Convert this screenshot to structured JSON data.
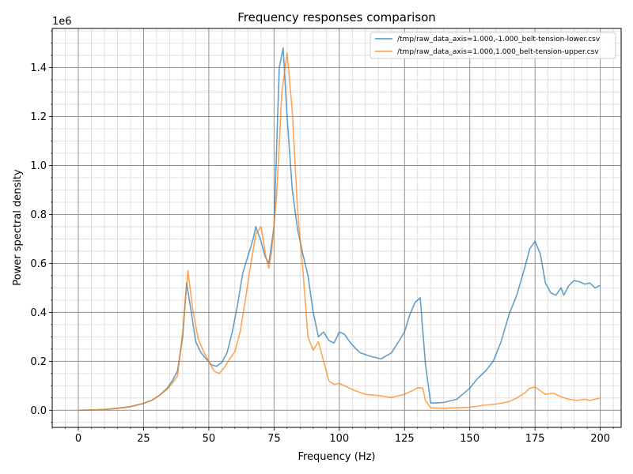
{
  "chart_data": {
    "type": "line",
    "title": "Frequency responses comparison",
    "xlabel": "Frequency (Hz)",
    "ylabel": "Power spectral density",
    "y_offset_label": "1e6",
    "xlim": [
      -10,
      208
    ],
    "ylim": [
      -0.07,
      1.56
    ],
    "x_ticks": [
      0,
      25,
      50,
      75,
      100,
      125,
      150,
      175,
      200
    ],
    "x_tick_labels": [
      "0",
      "25",
      "50",
      "75",
      "100",
      "125",
      "150",
      "175",
      "200"
    ],
    "y_ticks": [
      0.0,
      0.2,
      0.4,
      0.6,
      0.8,
      1.0,
      1.2,
      1.4
    ],
    "y_tick_labels": [
      "0.0",
      "0.2",
      "0.4",
      "0.6",
      "0.8",
      "1.0",
      "1.2",
      "1.4"
    ],
    "x_minor_step": 5,
    "y_minor_step": 0.05,
    "grid": true,
    "legend_position": "top-right",
    "series": [
      {
        "name": "/tmp/raw_data_axis=1.000,-1.000_belt-tension-lower.csv",
        "color": "#1f77b4",
        "points": [
          [
            0,
            0.0
          ],
          [
            5,
            0.001
          ],
          [
            10,
            0.003
          ],
          [
            15,
            0.008
          ],
          [
            20,
            0.015
          ],
          [
            25,
            0.028
          ],
          [
            28,
            0.04
          ],
          [
            31,
            0.06
          ],
          [
            34,
            0.09
          ],
          [
            36,
            0.12
          ],
          [
            38,
            0.16
          ],
          [
            40,
            0.3
          ],
          [
            41.5,
            0.52
          ],
          [
            43,
            0.42
          ],
          [
            45,
            0.28
          ],
          [
            47,
            0.235
          ],
          [
            49,
            0.21
          ],
          [
            51,
            0.185
          ],
          [
            53,
            0.18
          ],
          [
            55,
            0.195
          ],
          [
            57,
            0.235
          ],
          [
            59,
            0.32
          ],
          [
            61,
            0.43
          ],
          [
            63,
            0.56
          ],
          [
            65,
            0.63
          ],
          [
            67,
            0.7
          ],
          [
            68,
            0.75
          ],
          [
            70,
            0.69
          ],
          [
            71.5,
            0.63
          ],
          [
            73,
            0.6
          ],
          [
            75,
            0.75
          ],
          [
            77,
            1.4
          ],
          [
            78.5,
            1.48
          ],
          [
            80,
            1.2
          ],
          [
            82,
            0.9
          ],
          [
            84,
            0.74
          ],
          [
            86,
            0.64
          ],
          [
            88,
            0.55
          ],
          [
            90,
            0.4
          ],
          [
            92,
            0.3
          ],
          [
            94,
            0.32
          ],
          [
            96,
            0.285
          ],
          [
            98,
            0.275
          ],
          [
            100,
            0.32
          ],
          [
            102,
            0.31
          ],
          [
            104,
            0.28
          ],
          [
            106,
            0.255
          ],
          [
            108,
            0.235
          ],
          [
            112,
            0.22
          ],
          [
            116,
            0.21
          ],
          [
            120,
            0.235
          ],
          [
            123,
            0.285
          ],
          [
            125,
            0.32
          ],
          [
            127,
            0.39
          ],
          [
            129,
            0.44
          ],
          [
            131,
            0.46
          ],
          [
            133,
            0.19
          ],
          [
            135,
            0.03
          ],
          [
            137,
            0.03
          ],
          [
            140,
            0.032
          ],
          [
            145,
            0.045
          ],
          [
            150,
            0.09
          ],
          [
            153,
            0.13
          ],
          [
            156,
            0.16
          ],
          [
            159,
            0.2
          ],
          [
            162,
            0.28
          ],
          [
            165,
            0.39
          ],
          [
            168,
            0.47
          ],
          [
            171,
            0.58
          ],
          [
            173,
            0.66
          ],
          [
            175,
            0.69
          ],
          [
            177,
            0.64
          ],
          [
            179,
            0.52
          ],
          [
            181,
            0.48
          ],
          [
            183,
            0.47
          ],
          [
            185,
            0.5
          ],
          [
            186,
            0.47
          ],
          [
            188,
            0.51
          ],
          [
            190,
            0.53
          ],
          [
            192,
            0.525
          ],
          [
            194,
            0.515
          ],
          [
            196,
            0.52
          ],
          [
            198,
            0.5
          ],
          [
            200,
            0.51
          ]
        ]
      },
      {
        "name": "/tmp/raw_data_axis=1.000,1.000_belt-tension-upper.csv",
        "color": "#ff7f0e",
        "points": [
          [
            0,
            0.0
          ],
          [
            5,
            0.001
          ],
          [
            10,
            0.003
          ],
          [
            15,
            0.008
          ],
          [
            20,
            0.015
          ],
          [
            25,
            0.028
          ],
          [
            28,
            0.04
          ],
          [
            31,
            0.06
          ],
          [
            34,
            0.085
          ],
          [
            36,
            0.11
          ],
          [
            38,
            0.14
          ],
          [
            40,
            0.32
          ],
          [
            42,
            0.57
          ],
          [
            44,
            0.4
          ],
          [
            46,
            0.29
          ],
          [
            48,
            0.24
          ],
          [
            50,
            0.2
          ],
          [
            52,
            0.16
          ],
          [
            54,
            0.15
          ],
          [
            56,
            0.175
          ],
          [
            58,
            0.21
          ],
          [
            60,
            0.24
          ],
          [
            62,
            0.32
          ],
          [
            64,
            0.45
          ],
          [
            66,
            0.59
          ],
          [
            68,
            0.72
          ],
          [
            70,
            0.75
          ],
          [
            72,
            0.62
          ],
          [
            73,
            0.58
          ],
          [
            74,
            0.64
          ],
          [
            76,
            0.88
          ],
          [
            78,
            1.3
          ],
          [
            80,
            1.46
          ],
          [
            82,
            1.22
          ],
          [
            84,
            0.82
          ],
          [
            86,
            0.58
          ],
          [
            88,
            0.3
          ],
          [
            90,
            0.245
          ],
          [
            92,
            0.28
          ],
          [
            94,
            0.2
          ],
          [
            96,
            0.12
          ],
          [
            98,
            0.105
          ],
          [
            100,
            0.11
          ],
          [
            103,
            0.095
          ],
          [
            106,
            0.08
          ],
          [
            110,
            0.065
          ],
          [
            115,
            0.06
          ],
          [
            120,
            0.052
          ],
          [
            125,
            0.065
          ],
          [
            128,
            0.08
          ],
          [
            130,
            0.092
          ],
          [
            132,
            0.09
          ],
          [
            133,
            0.04
          ],
          [
            135,
            0.01
          ],
          [
            140,
            0.008
          ],
          [
            145,
            0.01
          ],
          [
            150,
            0.012
          ],
          [
            155,
            0.02
          ],
          [
            160,
            0.025
          ],
          [
            165,
            0.035
          ],
          [
            168,
            0.05
          ],
          [
            171,
            0.07
          ],
          [
            173,
            0.09
          ],
          [
            175,
            0.095
          ],
          [
            177,
            0.08
          ],
          [
            179,
            0.065
          ],
          [
            182,
            0.07
          ],
          [
            185,
            0.055
          ],
          [
            188,
            0.045
          ],
          [
            191,
            0.04
          ],
          [
            194,
            0.045
          ],
          [
            196,
            0.04
          ],
          [
            198,
            0.045
          ],
          [
            200,
            0.05
          ]
        ]
      }
    ]
  }
}
